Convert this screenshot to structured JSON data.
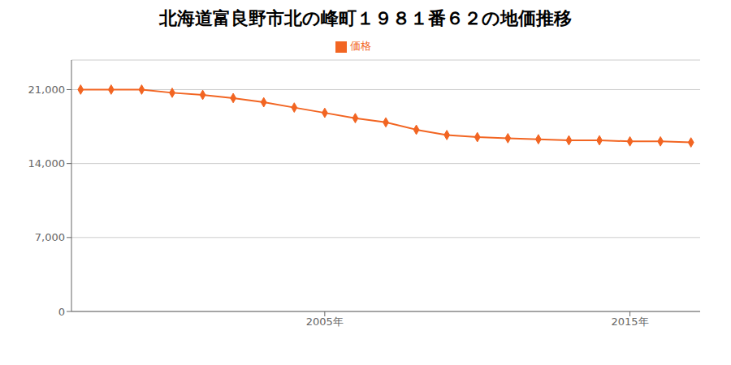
{
  "chart_data": {
    "type": "line",
    "title": "北海道富良野市北の峰町１９８１番６２の地価推移",
    "x": [
      1997,
      1998,
      1999,
      2000,
      2001,
      2002,
      2003,
      2004,
      2005,
      2006,
      2007,
      2008,
      2009,
      2010,
      2011,
      2012,
      2013,
      2014,
      2015,
      2016,
      2017
    ],
    "series": [
      {
        "name": "価格",
        "color": "#f26522",
        "values": [
          21000,
          21000,
          21000,
          20700,
          20500,
          20200,
          19800,
          19300,
          18800,
          18300,
          17900,
          17200,
          16700,
          16500,
          16400,
          16300,
          16200,
          16200,
          16100,
          16100,
          16000
        ]
      }
    ],
    "marker": "diamond",
    "xlim": [
      1996.7,
      2017.3
    ],
    "xticks": [
      {
        "value": 2005,
        "label": "2005年"
      },
      {
        "value": 2015,
        "label": "2015年"
      }
    ],
    "ylim": [
      0,
      23800
    ],
    "yticks": [
      0,
      {
        "value": 7000,
        "label": "7,000"
      },
      {
        "value": 14000,
        "label": "14,000"
      },
      {
        "value": 21000,
        "label": "21,000"
      }
    ],
    "grid": "y",
    "legend": "top"
  }
}
